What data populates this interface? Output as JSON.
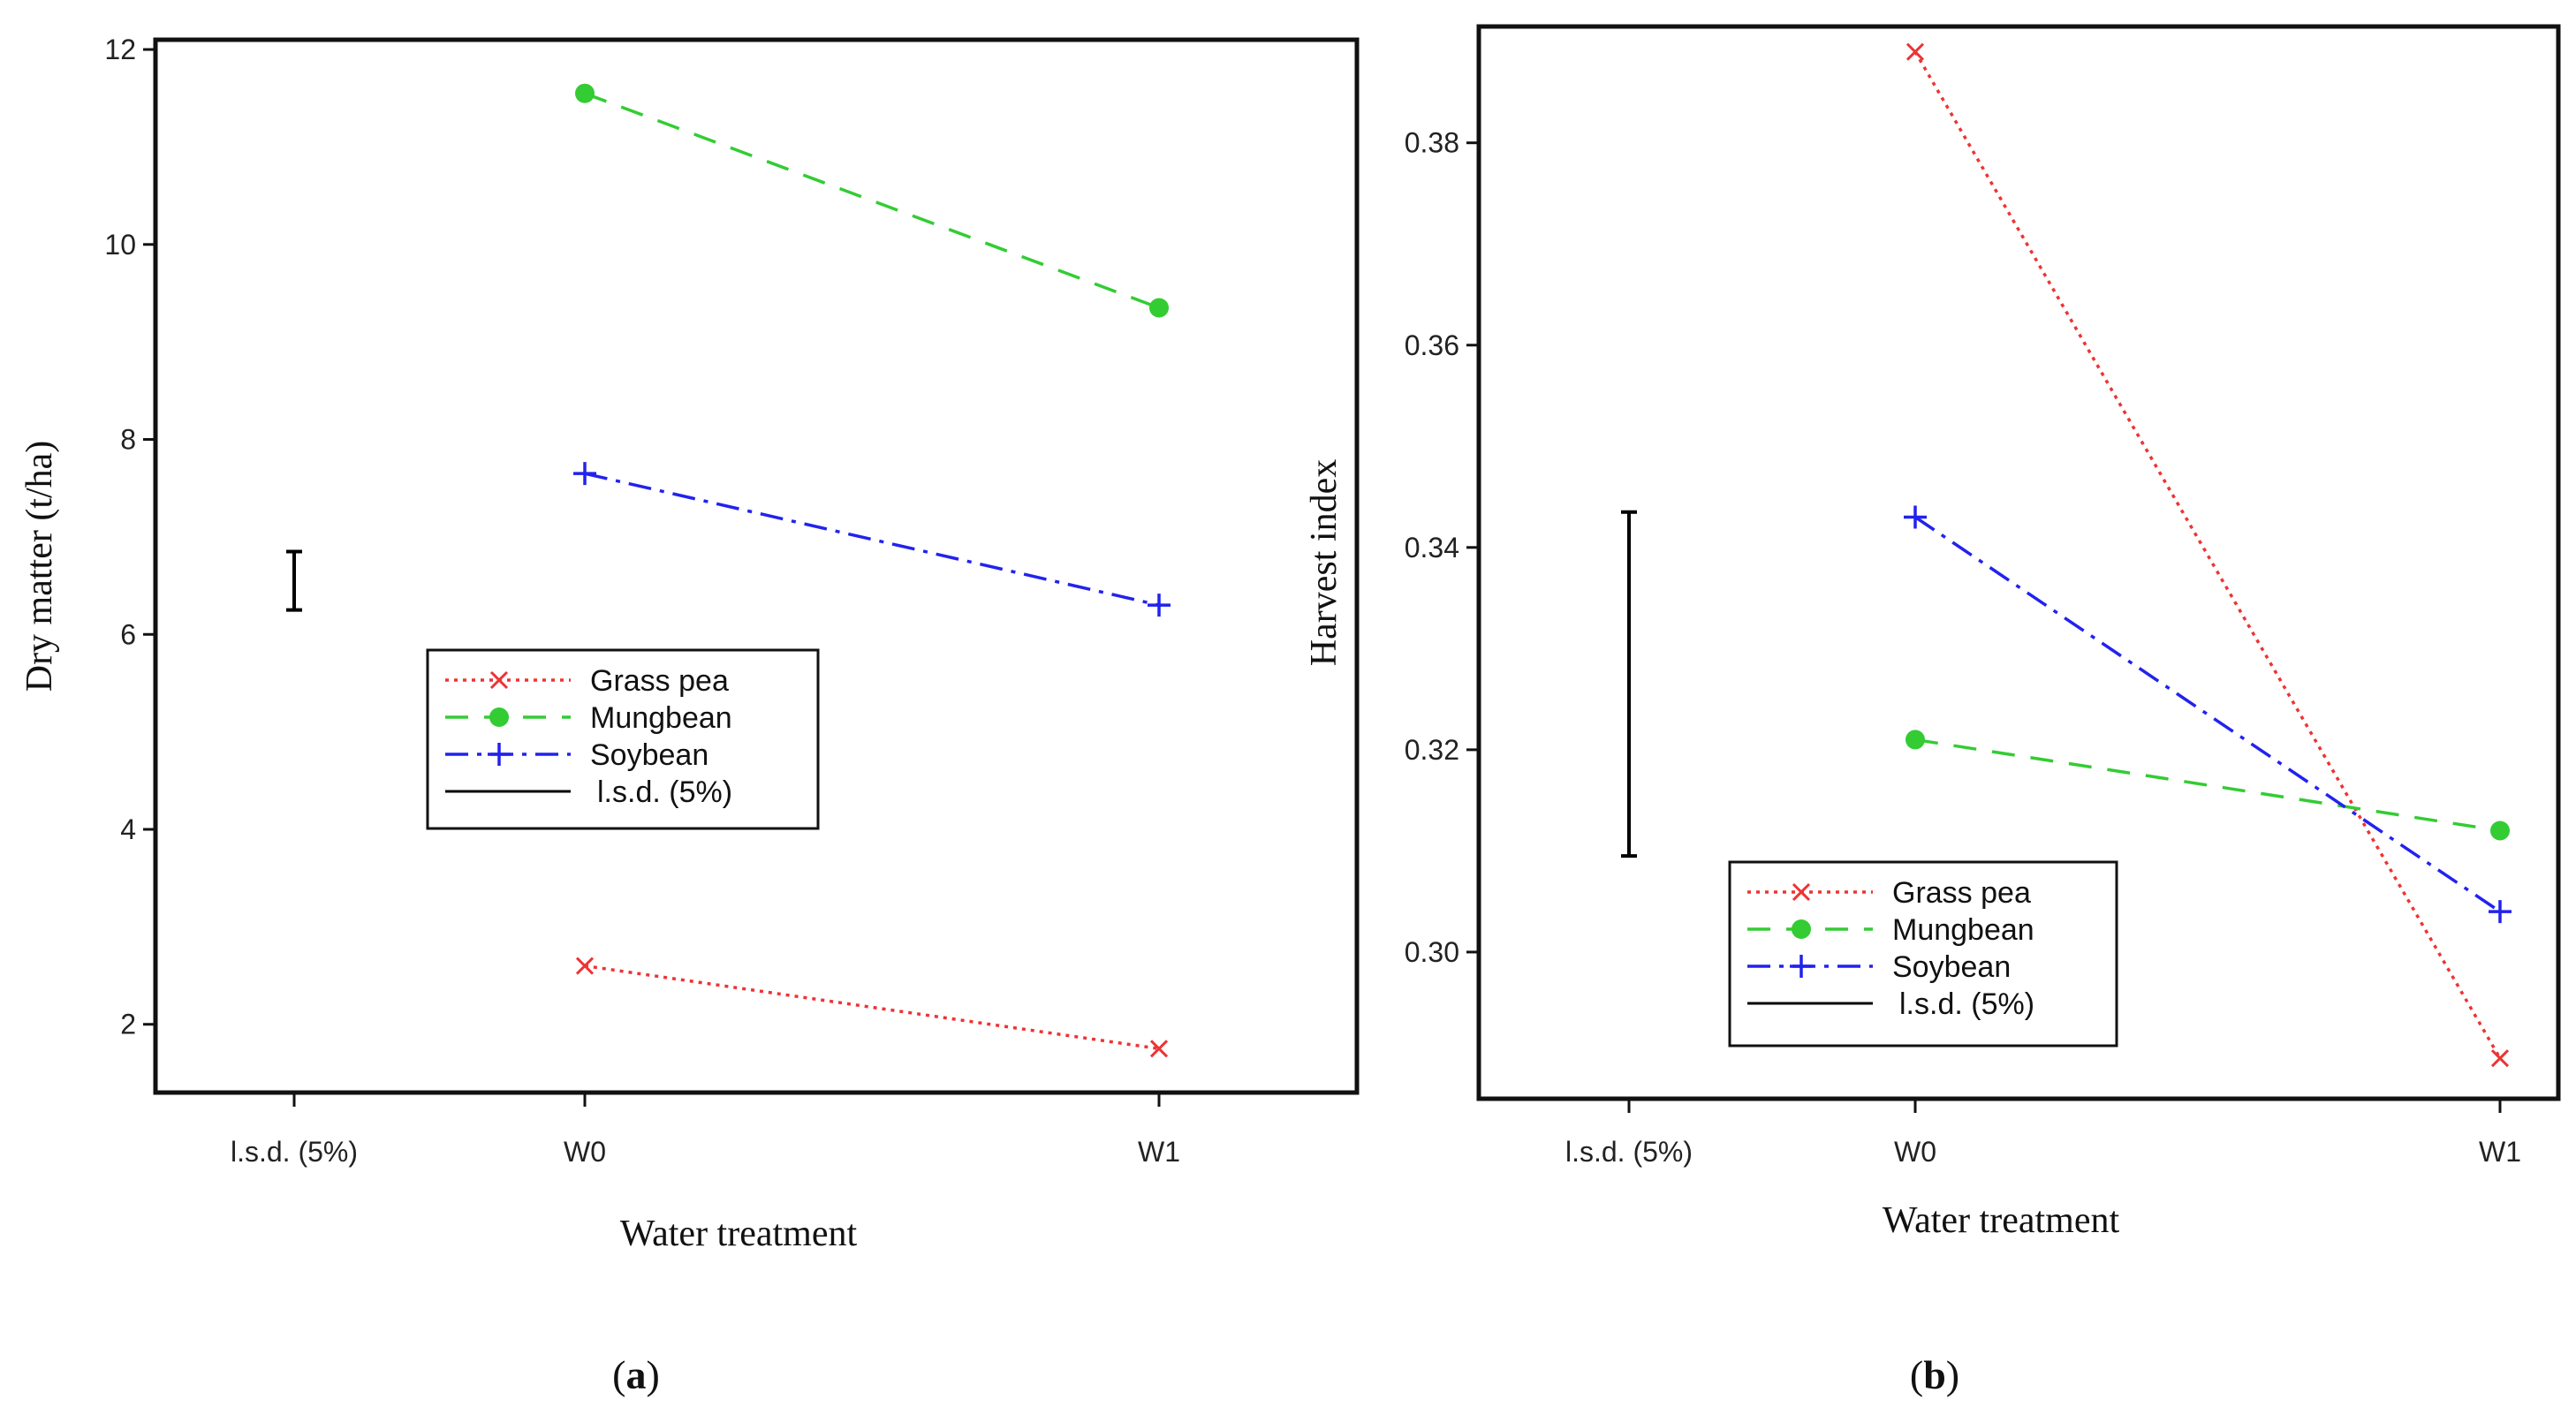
{
  "chart_data": [
    {
      "type": "line",
      "panel": "a",
      "xlabel": "Water treatment",
      "ylabel": "Dry matter (t/ha)",
      "x_categories": [
        "l.s.d. (5%)",
        "W0",
        "W1"
      ],
      "ylim": [
        1.3,
        12.1
      ],
      "yticks": [
        2,
        4,
        6,
        8,
        10,
        12
      ],
      "ytick_labels": [
        "2",
        "4",
        "6",
        "8",
        "10",
        "12"
      ],
      "series": [
        {
          "name": "Grass pea",
          "color": "#ee3333",
          "marker": "x",
          "dash": "dotted",
          "x": [
            "W0",
            "W1"
          ],
          "values": [
            2.6,
            1.75
          ]
        },
        {
          "name": "Mungbean",
          "color": "#33cc33",
          "marker": "circle",
          "dash": "dashed",
          "x": [
            "W0",
            "W1"
          ],
          "values": [
            11.55,
            9.35
          ]
        },
        {
          "name": "Soybean",
          "color": "#2222ee",
          "marker": "plus",
          "dash": "dashdot",
          "x": [
            "W0",
            "W1"
          ],
          "values": [
            7.65,
            6.3
          ]
        }
      ],
      "lsd": {
        "name": "l.s.d. (5%)",
        "x": "l.s.d. (5%)",
        "low": 6.25,
        "high": 6.85,
        "color": "#000000"
      },
      "legend": {
        "position": "center",
        "entries": [
          "Grass pea",
          "Mungbean",
          "Soybean",
          "l.s.d. (5%)"
        ]
      },
      "label": "a"
    },
    {
      "type": "line",
      "panel": "b",
      "xlabel": "Water treatment",
      "ylabel": "Harvest index",
      "x_categories": [
        "l.s.d. (5%)",
        "W0",
        "W1"
      ],
      "ylim": [
        0.2855,
        0.3915
      ],
      "yticks": [
        0.3,
        0.32,
        0.34,
        0.36,
        0.38
      ],
      "ytick_labels": [
        "0.30",
        "0.32",
        "0.34",
        "0.36",
        "0.38"
      ],
      "series": [
        {
          "name": "Grass pea",
          "color": "#ee3333",
          "marker": "x",
          "dash": "dotted",
          "x": [
            "W0",
            "W1"
          ],
          "values": [
            0.389,
            0.2895
          ]
        },
        {
          "name": "Mungbean",
          "color": "#33cc33",
          "marker": "circle",
          "dash": "dashed",
          "x": [
            "W0",
            "W1"
          ],
          "values": [
            0.321,
            0.312
          ]
        },
        {
          "name": "Soybean",
          "color": "#2222ee",
          "marker": "plus",
          "dash": "dashdot",
          "x": [
            "W0",
            "W1"
          ],
          "values": [
            0.343,
            0.304
          ]
        }
      ],
      "lsd": {
        "name": "l.s.d. (5%)",
        "x": "l.s.d. (5%)",
        "low": 0.3095,
        "high": 0.3435,
        "color": "#000000"
      },
      "legend": {
        "position": "bottom-right",
        "entries": [
          "Grass pea",
          "Mungbean",
          "Soybean",
          "l.s.d. (5%)"
        ]
      },
      "label": "b"
    }
  ]
}
